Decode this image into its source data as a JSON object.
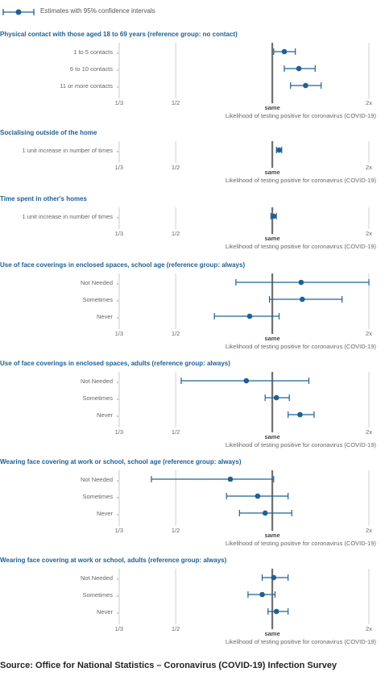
{
  "legend": {
    "label": "Estimates with 95% confidence intervals"
  },
  "colors": {
    "series": "#206095",
    "title": "#206095",
    "reference_line": "#707071",
    "grid": "#d0d0d0",
    "text": "#666666"
  },
  "source": "Source: Office for National Statistics – Coronavirus (COVID-19) Infection Survey",
  "chart_data": [
    {
      "type": "scatter",
      "title": "Physical contact with those aged 18 to 69 years (reference group: no contact)",
      "categories": [
        "1 to 5 contacts",
        "6 to 10 contacts",
        "11 or more contacts"
      ],
      "estimates": [
        1.09,
        1.21,
        1.27
      ],
      "lower": [
        1.01,
        1.09,
        1.14
      ],
      "upper": [
        1.18,
        1.36,
        1.42
      ],
      "x_scale": "log",
      "x_ticks": [
        "1/3",
        "1/2",
        "same",
        "2x"
      ],
      "x_tick_values": [
        0.333,
        0.5,
        1,
        2
      ],
      "xlabel": "Likelihood of testing positive for coronavirus (COVID-19)"
    },
    {
      "type": "scatter",
      "title": "Socialising outside of the home",
      "categories": [
        "1 unit increase in number of times"
      ],
      "estimates": [
        1.05
      ],
      "lower": [
        1.03
      ],
      "upper": [
        1.07
      ],
      "x_scale": "log",
      "x_ticks": [
        "1/3",
        "1/2",
        "same",
        "2x"
      ],
      "x_tick_values": [
        0.333,
        0.5,
        1,
        2
      ],
      "xlabel": "Likelihood of testing positive for coronavirus (COVID-19)"
    },
    {
      "type": "scatter",
      "title": "Time spent in other's homes",
      "categories": [
        "1 unit increase in number of times"
      ],
      "estimates": [
        1.01
      ],
      "lower": [
        0.99
      ],
      "upper": [
        1.03
      ],
      "x_scale": "log",
      "x_ticks": [
        "1/3",
        "1/2",
        "same",
        "2x"
      ],
      "x_tick_values": [
        0.333,
        0.5,
        1,
        2
      ],
      "xlabel": "Likelihood of testing positive for coronavirus (COVID-19)"
    },
    {
      "type": "scatter",
      "title": "Use of face coverings in enclosed spaces, school age (reference group: always)",
      "categories": [
        "Not Needed",
        "Sometimes",
        "Never"
      ],
      "estimates": [
        1.23,
        1.24,
        0.85
      ],
      "lower": [
        0.77,
        0.98,
        0.66
      ],
      "upper": [
        2.0,
        1.65,
        1.05
      ],
      "x_scale": "log",
      "x_ticks": [
        "1/3",
        "1/2",
        "same",
        "2x"
      ],
      "x_tick_values": [
        0.333,
        0.5,
        1,
        2
      ],
      "xlabel": "Likelihood of testing positive for coronavirus (COVID-19)"
    },
    {
      "type": "scatter",
      "title": "Use of face coverings in enclosed spaces, adults (reference group: always)",
      "categories": [
        "Not Needed",
        "Sometimes",
        "Never"
      ],
      "estimates": [
        0.83,
        1.03,
        1.22
      ],
      "lower": [
        0.52,
        0.95,
        1.12
      ],
      "upper": [
        1.3,
        1.13,
        1.35
      ],
      "x_scale": "log",
      "x_ticks": [
        "1/3",
        "1/2",
        "same",
        "2x"
      ],
      "x_tick_values": [
        0.333,
        0.5,
        1,
        2
      ],
      "xlabel": "Likelihood of testing positive for coronavirus (COVID-19)"
    },
    {
      "type": "scatter",
      "title": "Wearing face covering at work or school, school age (reference group: always)",
      "categories": [
        "Not Needed",
        "Sometimes",
        "Never"
      ],
      "estimates": [
        0.74,
        0.9,
        0.95
      ],
      "lower": [
        0.42,
        0.72,
        0.79
      ],
      "upper": [
        1.01,
        1.12,
        1.15
      ],
      "x_scale": "log",
      "x_ticks": [
        "1/3",
        "1/2",
        "same",
        "2x"
      ],
      "x_tick_values": [
        0.333,
        0.5,
        1,
        2
      ],
      "xlabel": "Likelihood of testing positive for coronavirus (COVID-19)"
    },
    {
      "type": "scatter",
      "title": "Wearing face covering at work or school, adults (reference group: always)",
      "categories": [
        "Not Needed",
        "Sometimes",
        "Never"
      ],
      "estimates": [
        1.01,
        0.93,
        1.03
      ],
      "lower": [
        0.93,
        0.84,
        0.97
      ],
      "upper": [
        1.12,
        1.02,
        1.12
      ],
      "x_scale": "log",
      "x_ticks": [
        "1/3",
        "1/2",
        "same",
        "2x"
      ],
      "x_tick_values": [
        0.333,
        0.5,
        1,
        2
      ],
      "xlabel": "Likelihood of testing positive for coronavirus (COVID-19)"
    }
  ]
}
